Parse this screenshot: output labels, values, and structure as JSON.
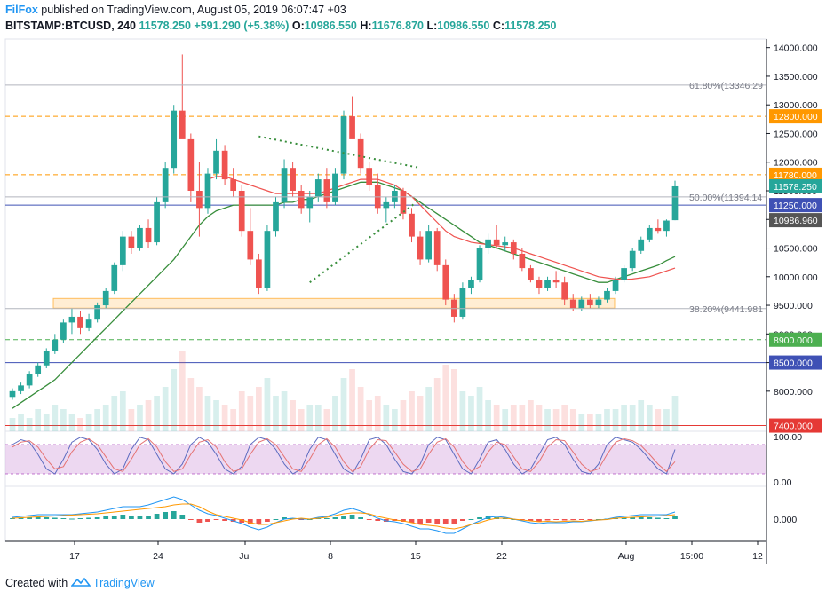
{
  "header": {
    "brand": "FilFox",
    "published_text": "published on TradingView.com, August 05, 2019 06:07:47 +03",
    "symbol": "BITSTAMP:BTCUSD, 240",
    "last": "11578.250",
    "change": "+591.290 (+5.38%)",
    "o_label": "O:",
    "o_value": "10986.550",
    "h_label": "H:",
    "h_value": "11676.870",
    "l_label": "L:",
    "l_value": "10986.550",
    "c_label": "C:",
    "c_value": "11578.250"
  },
  "footer": {
    "created_with": "Created with",
    "brand": "TradingView",
    "icon": "tradingview-logo-icon"
  },
  "colors": {
    "up": "#26a69a",
    "down": "#ef5350",
    "ma": "#388e3c",
    "ema": "#ef5350",
    "fib": "#b2b5be",
    "level_orange": "#ff9800",
    "level_blue": "#3f51b5",
    "level_green": "#4caf50",
    "level_red": "#e53935",
    "zone": "#ffcc80",
    "rsi_band": "#e1bee7",
    "macd": "#2196f3",
    "signal": "#ff9800"
  },
  "chart_data": [
    {
      "type": "candlestick",
      "title": "BITSTAMP:BTCUSD, 240",
      "x_ticks": [
        "17",
        "24",
        "Jul",
        "8",
        "15",
        "22",
        "Aug",
        "15:00",
        "12"
      ],
      "y_ticks": [
        8000,
        8500,
        9000,
        9500,
        10000,
        10500,
        11000,
        11500,
        12000,
        12500,
        13000,
        13500,
        14000
      ],
      "y_tick_labels": [
        "8000.000",
        "8500.000",
        "9000.000",
        "9500.000",
        "10000.000",
        "10500.000",
        "11000.000",
        "11500.000",
        "12000.000",
        "12500.000",
        "13000.000",
        "13500.000",
        "14000.000"
      ],
      "ylim": [
        7300,
        14150
      ],
      "ohlc_series": [
        [
          7900,
          8050,
          7850,
          8000
        ],
        [
          8000,
          8150,
          7950,
          8100
        ],
        [
          8100,
          8350,
          8050,
          8300
        ],
        [
          8300,
          8500,
          8250,
          8450
        ],
        [
          8450,
          8750,
          8400,
          8700
        ],
        [
          8700,
          9000,
          8650,
          8900
        ],
        [
          8900,
          9250,
          8850,
          9200
        ],
        [
          9200,
          9450,
          9000,
          9300
        ],
        [
          9300,
          9400,
          9000,
          9100
        ],
        [
          9100,
          9350,
          9050,
          9250
        ],
        [
          9250,
          9550,
          9200,
          9500
        ],
        [
          9500,
          9800,
          9450,
          9750
        ],
        [
          9750,
          10250,
          9700,
          10200
        ],
        [
          10200,
          10800,
          10100,
          10700
        ],
        [
          10700,
          10800,
          10400,
          10500
        ],
        [
          10500,
          10900,
          10450,
          10850
        ],
        [
          10850,
          11000,
          10500,
          10600
        ],
        [
          10600,
          11400,
          10550,
          11300
        ],
        [
          11300,
          12000,
          11200,
          11900
        ],
        [
          11900,
          13000,
          11800,
          12900
        ],
        [
          12900,
          13880,
          12600,
          12400
        ],
        [
          12400,
          12500,
          11300,
          11500
        ],
        [
          11500,
          12000,
          10700,
          11200
        ],
        [
          11200,
          11900,
          11100,
          11800
        ],
        [
          11800,
          12400,
          11700,
          12200
        ],
        [
          12200,
          12300,
          11600,
          11700
        ],
        [
          11700,
          11900,
          11400,
          11500
        ],
        [
          11500,
          11600,
          10700,
          10800
        ],
        [
          10800,
          11200,
          10200,
          10300
        ],
        [
          10300,
          10400,
          9700,
          9800
        ],
        [
          9800,
          10900,
          9750,
          10800
        ],
        [
          10800,
          11400,
          10700,
          11300
        ],
        [
          11300,
          12050,
          11200,
          11900
        ],
        [
          11900,
          12000,
          11400,
          11500
        ],
        [
          11500,
          11600,
          11100,
          11200
        ],
        [
          11200,
          11500,
          10950,
          11400
        ],
        [
          11400,
          11800,
          11300,
          11700
        ],
        [
          11700,
          11900,
          11200,
          11300
        ],
        [
          11300,
          11900,
          11250,
          11800
        ],
        [
          11800,
          12900,
          11700,
          12800
        ],
        [
          12800,
          13150,
          12500,
          12400
        ],
        [
          12400,
          12500,
          11800,
          11900
        ],
        [
          11900,
          12000,
          11500,
          11600
        ],
        [
          11600,
          11800,
          11100,
          11200
        ],
        [
          11200,
          11400,
          10950,
          11300
        ],
        [
          11300,
          11600,
          11200,
          11500
        ],
        [
          11500,
          11550,
          11000,
          11100
        ],
        [
          11100,
          11200,
          10600,
          10700
        ],
        [
          10700,
          10800,
          10200,
          10300
        ],
        [
          10300,
          10900,
          10250,
          10800
        ],
        [
          10800,
          10850,
          10100,
          10200
        ],
        [
          10200,
          10300,
          9500,
          9600
        ],
        [
          9600,
          9700,
          9200,
          9300
        ],
        [
          9300,
          9900,
          9250,
          9800
        ],
        [
          9800,
          10000,
          9700,
          9950
        ],
        [
          9950,
          10550,
          9900,
          10500
        ],
        [
          10500,
          10750,
          10400,
          10650
        ],
        [
          10650,
          10900,
          10500,
          10550
        ],
        [
          10550,
          10700,
          10450,
          10600
        ],
        [
          10600,
          10650,
          10300,
          10400
        ],
        [
          10400,
          10500,
          10100,
          10150
        ],
        [
          10150,
          10200,
          9900,
          9950
        ],
        [
          9950,
          10000,
          9700,
          9800
        ],
        [
          9800,
          10000,
          9750,
          9950
        ],
        [
          9950,
          10100,
          9800,
          9900
        ],
        [
          9900,
          10000,
          9500,
          9600
        ],
        [
          9600,
          9700,
          9400,
          9450
        ],
        [
          9450,
          9650,
          9400,
          9600
        ],
        [
          9600,
          9700,
          9450,
          9500
        ],
        [
          9500,
          9650,
          9450,
          9600
        ],
        [
          9600,
          9800,
          9550,
          9750
        ],
        [
          9750,
          10000,
          9700,
          9950
        ],
        [
          9950,
          10200,
          9900,
          10150
        ],
        [
          10150,
          10500,
          10100,
          10450
        ],
        [
          10450,
          10700,
          10400,
          10650
        ],
        [
          10650,
          10900,
          10600,
          10850
        ],
        [
          10850,
          11000,
          10750,
          10800
        ],
        [
          10800,
          11000,
          10700,
          10980
        ],
        [
          10987,
          11677,
          10987,
          11578
        ]
      ],
      "ma_series": [
        7700,
        7800,
        7900,
        8000,
        8100,
        8200,
        8350,
        8500,
        8650,
        8800,
        8950,
        9100,
        9250,
        9400,
        9550,
        9700,
        9850,
        10000,
        10150,
        10300,
        10500,
        10700,
        10900,
        11050,
        11150,
        11200,
        11250,
        11250,
        11250,
        11250,
        11250,
        11250,
        11300,
        11300,
        11350,
        11350,
        11400,
        11450,
        11500,
        11550,
        11600,
        11650,
        11650,
        11650,
        11600,
        11550,
        11500,
        11400,
        11300,
        11200,
        11100,
        11000,
        10900,
        10800,
        10700,
        10600,
        10550,
        10500,
        10450,
        10400,
        10350,
        10300,
        10250,
        10200,
        10150,
        10100,
        10050,
        10000,
        9950,
        9900,
        9900,
        9950,
        10000,
        10050,
        10100,
        10150,
        10200,
        10280,
        10350
      ],
      "ema_series": [
        null,
        null,
        null,
        null,
        null,
        null,
        null,
        null,
        null,
        null,
        null,
        null,
        null,
        null,
        null,
        null,
        null,
        null,
        null,
        null,
        null,
        null,
        null,
        11700,
        11750,
        11750,
        11700,
        11650,
        11600,
        11550,
        11500,
        11450,
        11450,
        11450,
        11450,
        11450,
        11450,
        11500,
        11550,
        11600,
        11650,
        11700,
        11700,
        11700,
        11650,
        11600,
        11500,
        11400,
        11250,
        11100,
        10950,
        10800,
        10700,
        10650,
        10600,
        10580,
        10560,
        10540,
        10520,
        10500,
        10450,
        10400,
        10350,
        10300,
        10250,
        10200,
        10150,
        10100,
        10050,
        10000,
        9980,
        9960,
        9950,
        9960,
        9980,
        10000,
        10050,
        10100,
        10150
      ],
      "volume": [
        3,
        4,
        3,
        5,
        4,
        6,
        5,
        4,
        3,
        4,
        5,
        6,
        8,
        9,
        5,
        6,
        7,
        8,
        10,
        14,
        18,
        12,
        10,
        8,
        7,
        6,
        5,
        9,
        8,
        10,
        12,
        8,
        9,
        7,
        5,
        6,
        6,
        5,
        8,
        12,
        14,
        10,
        7,
        8,
        6,
        5,
        7,
        9,
        8,
        10,
        12,
        15,
        14,
        9,
        8,
        10,
        7,
        6,
        5,
        6,
        6,
        7,
        6,
        5,
        5,
        6,
        5,
        4,
        4,
        4,
        5,
        5,
        6,
        6,
        7,
        6,
        5,
        5,
        8
      ],
      "annotations": [
        {
          "text": "61.80%(13346.29",
          "value": 13346.29
        },
        {
          "text": "50.00%(11394.14",
          "value": 11394.14
        },
        {
          "text": "38.20%(9441.981",
          "value": 9441.981
        }
      ],
      "horizontal_levels": [
        {
          "value": 12800,
          "label": "12800.000",
          "style": "dashed",
          "color_key": "level_orange"
        },
        {
          "value": 11780,
          "label": "11780.000",
          "style": "dashed",
          "color_key": "level_orange"
        },
        {
          "value": 11250,
          "label": "11250.000",
          "style": "solid",
          "color_key": "level_blue"
        },
        {
          "value": 8900,
          "label": "8900.000",
          "style": "dashed",
          "color_key": "level_green"
        },
        {
          "value": 8500,
          "label": "8500.000",
          "style": "solid",
          "color_key": "level_blue"
        },
        {
          "value": 7400,
          "label": "7400.000",
          "style": "solid",
          "color_key": "level_red"
        }
      ],
      "price_labels": [
        {
          "value": 11578.25,
          "label": "11578.250",
          "bg": "#26a69a"
        },
        {
          "value": 10986.96,
          "label": "10986.960",
          "bg": "#555555"
        }
      ],
      "zone": {
        "from": 9450,
        "to": 9620
      },
      "triangle": {
        "top": [
          [
            29,
            12450
          ],
          [
            48,
            11900
          ]
        ],
        "bottom": [
          [
            35,
            9900
          ],
          [
            48,
            11350
          ]
        ]
      }
    },
    {
      "type": "line",
      "name": "stochastic-rsi",
      "y_tick_labels": [
        "100.00",
        "0.00"
      ],
      "ylim": [
        0,
        100
      ],
      "band": [
        20,
        80
      ],
      "k_series": [
        80,
        90,
        85,
        60,
        30,
        20,
        50,
        85,
        95,
        90,
        70,
        40,
        20,
        30,
        70,
        95,
        90,
        60,
        30,
        20,
        40,
        80,
        95,
        85,
        60,
        30,
        20,
        35,
        80,
        95,
        90,
        70,
        40,
        20,
        30,
        70,
        95,
        90,
        60,
        30,
        20,
        50,
        90,
        95,
        80,
        50,
        25,
        20,
        40,
        80,
        95,
        90,
        60,
        30,
        20,
        50,
        85,
        90,
        70,
        40,
        20,
        30,
        60,
        90,
        95,
        80,
        50,
        25,
        20,
        40,
        80,
        95,
        90,
        85,
        70,
        50,
        30,
        20,
        70
      ],
      "d_series": [
        75,
        85,
        88,
        75,
        50,
        30,
        35,
        65,
        85,
        92,
        80,
        55,
        30,
        25,
        50,
        80,
        92,
        75,
        45,
        25,
        30,
        60,
        85,
        90,
        75,
        45,
        25,
        30,
        60,
        85,
        92,
        80,
        55,
        30,
        25,
        50,
        80,
        92,
        75,
        45,
        25,
        35,
        70,
        90,
        88,
        65,
        40,
        25,
        30,
        60,
        85,
        92,
        75,
        45,
        25,
        35,
        65,
        85,
        80,
        55,
        30,
        25,
        45,
        75,
        90,
        88,
        65,
        40,
        25,
        30,
        60,
        85,
        92,
        88,
        78,
        60,
        40,
        25,
        45
      ]
    },
    {
      "type": "bar",
      "name": "macd",
      "y_tick_labels": [
        "0.000"
      ],
      "histogram": [
        0.1,
        0.15,
        0.2,
        0.25,
        0.2,
        0.15,
        0.1,
        0.05,
        0.1,
        0.15,
        0.2,
        0.3,
        0.4,
        0.5,
        0.4,
        0.3,
        0.4,
        0.6,
        0.8,
        0.9,
        0.5,
        -0.1,
        -0.4,
        -0.3,
        -0.1,
        -0.2,
        -0.3,
        -0.4,
        -0.5,
        -0.6,
        -0.3,
        0.0,
        0.2,
        0.1,
        -0.1,
        0.0,
        0.1,
        0.1,
        0.2,
        0.4,
        0.5,
        0.2,
        -0.1,
        -0.2,
        -0.3,
        -0.2,
        -0.3,
        -0.4,
        -0.5,
        -0.4,
        -0.5,
        -0.6,
        -0.5,
        -0.2,
        0.0,
        0.2,
        0.3,
        0.2,
        0.1,
        0.0,
        -0.1,
        -0.2,
        -0.25,
        -0.15,
        -0.1,
        -0.15,
        -0.1,
        -0.05,
        -0.05,
        0.0,
        0.05,
        0.1,
        0.15,
        0.2,
        0.25,
        0.2,
        0.15,
        0.1,
        0.3
      ],
      "macd_series": [
        0.2,
        0.3,
        0.4,
        0.5,
        0.5,
        0.5,
        0.5,
        0.5,
        0.6,
        0.7,
        0.8,
        1.0,
        1.2,
        1.4,
        1.4,
        1.4,
        1.6,
        1.9,
        2.2,
        2.5,
        2.2,
        1.6,
        1.0,
        0.6,
        0.4,
        0.1,
        -0.2,
        -0.5,
        -0.9,
        -1.2,
        -0.9,
        -0.4,
        0.0,
        0.1,
        0.0,
        0.0,
        0.2,
        0.3,
        0.6,
        1.0,
        1.2,
        0.9,
        0.5,
        0.1,
        -0.2,
        -0.3,
        -0.5,
        -0.8,
        -1.1,
        -1.1,
        -1.3,
        -1.6,
        -1.6,
        -1.1,
        -0.6,
        -0.2,
        0.2,
        0.3,
        0.2,
        0.0,
        -0.2,
        -0.4,
        -0.5,
        -0.4,
        -0.4,
        -0.4,
        -0.3,
        -0.3,
        -0.2,
        -0.1,
        0.0,
        0.2,
        0.3,
        0.4,
        0.5,
        0.5,
        0.5,
        0.5,
        0.8
      ],
      "signal_series": [
        0.1,
        0.15,
        0.2,
        0.25,
        0.3,
        0.35,
        0.4,
        0.45,
        0.5,
        0.55,
        0.6,
        0.7,
        0.8,
        0.9,
        1.0,
        1.1,
        1.2,
        1.3,
        1.4,
        1.6,
        1.7,
        1.7,
        1.4,
        0.9,
        0.5,
        0.3,
        0.1,
        -0.1,
        -0.4,
        -0.6,
        -0.6,
        -0.4,
        -0.2,
        0.0,
        0.1,
        0.0,
        0.1,
        0.2,
        0.4,
        0.6,
        0.7,
        0.7,
        0.6,
        0.3,
        0.1,
        -0.1,
        -0.2,
        -0.4,
        -0.6,
        -0.7,
        -0.8,
        -1.0,
        -1.1,
        -0.9,
        -0.6,
        -0.4,
        -0.1,
        0.1,
        0.1,
        0.0,
        -0.1,
        -0.2,
        -0.3,
        -0.25,
        -0.3,
        -0.25,
        -0.2,
        -0.25,
        -0.15,
        -0.1,
        -0.05,
        0.1,
        0.15,
        0.2,
        0.25,
        0.3,
        0.35,
        0.4,
        0.5
      ]
    }
  ]
}
